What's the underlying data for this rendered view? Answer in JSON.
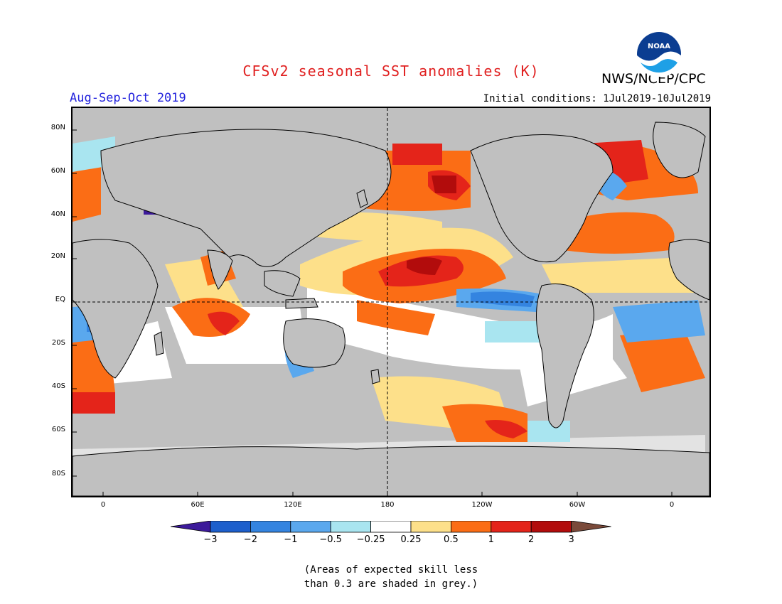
{
  "title": "CFSv2 seasonal SST anomalies (K)",
  "period": "Aug-Sep-Oct 2019",
  "initial_conditions": "Initial conditions: 1Jul2019-10Jul2019",
  "agency": "NWS/NCEP/CPC",
  "logo_text": "NOAA",
  "colors": {
    "title": "#e02020",
    "period": "#2222dd",
    "grey": "#c0c0c0",
    "land": "#c0c0c0"
  },
  "lat_ticks": [
    "80N",
    "60N",
    "40N",
    "20N",
    "EQ",
    "20S",
    "40S",
    "60S",
    "80S"
  ],
  "lon_ticks": [
    "0",
    "60E",
    "120E",
    "180",
    "120W",
    "60W",
    "0"
  ],
  "colorbar": {
    "labels": [
      "−3",
      "−2",
      "−1",
      "−0.5",
      "−0.25",
      "0.25",
      "0.5",
      "1",
      "2",
      "3"
    ],
    "colors": [
      "#3c1a9a",
      "#1d5fcc",
      "#3484e0",
      "#5aa8ee",
      "#a9e5f0",
      "#ffffff",
      "#fde08a",
      "#fb6d15",
      "#e4241a",
      "#b20c0c",
      "#7a4a3a"
    ]
  },
  "note_line1": "(Areas of expected skill less",
  "note_line2": "than 0.3 are shaded in grey.)"
}
